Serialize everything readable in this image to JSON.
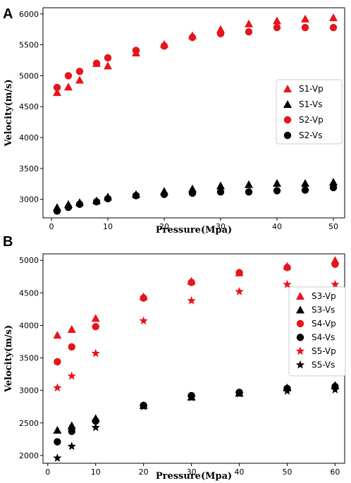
{
  "chart_data": [
    {
      "type": "scatter",
      "panel_label": "A",
      "xlabel": "Pressure(Mpa)",
      "ylabel": "Velocity(m/s)",
      "xlim": [
        -1.5,
        52
      ],
      "ylim": [
        2700,
        6100
      ],
      "xticks": [
        0,
        10,
        20,
        30,
        40,
        50
      ],
      "yticks": [
        3000,
        3500,
        4000,
        4500,
        5000,
        5500,
        6000
      ],
      "legend_position": "center-right",
      "grid": false,
      "series": [
        {
          "name": "S1-Vp",
          "marker": "triangle",
          "color": "#e8131b",
          "x": [
            1,
            3,
            5,
            8,
            10,
            15,
            20,
            25,
            30,
            35,
            40,
            45,
            50
          ],
          "y": [
            4730,
            4820,
            4930,
            5200,
            5160,
            5370,
            5510,
            5650,
            5750,
            5840,
            5890,
            5920,
            5940
          ]
        },
        {
          "name": "S1-Vs",
          "marker": "triangle",
          "color": "#000000",
          "x": [
            1,
            3,
            5,
            8,
            10,
            15,
            20,
            25,
            30,
            35,
            40,
            45,
            50
          ],
          "y": [
            2870,
            2920,
            2950,
            2980,
            3040,
            3080,
            3130,
            3170,
            3220,
            3240,
            3260,
            3260,
            3280
          ]
        },
        {
          "name": "S2-Vp",
          "marker": "circle",
          "color": "#e8131b",
          "x": [
            1,
            3,
            5,
            8,
            10,
            15,
            20,
            25,
            30,
            35,
            40,
            45,
            50
          ],
          "y": [
            4810,
            5000,
            5070,
            5200,
            5290,
            5410,
            5480,
            5620,
            5680,
            5710,
            5780,
            5780,
            5780
          ]
        },
        {
          "name": "S2-Vs",
          "marker": "circle",
          "color": "#000000",
          "x": [
            1,
            3,
            5,
            8,
            10,
            15,
            20,
            25,
            30,
            35,
            40,
            45,
            50
          ],
          "y": [
            2810,
            2870,
            2920,
            2960,
            3010,
            3060,
            3080,
            3100,
            3120,
            3120,
            3140,
            3150,
            3190
          ]
        }
      ]
    },
    {
      "type": "scatter",
      "panel_label": "B",
      "xlabel": "Pressure(Mpa)",
      "ylabel": "Velocity(m/s)",
      "xlim": [
        -1,
        62
      ],
      "ylim": [
        1880,
        5100
      ],
      "xticks": [
        0,
        10,
        20,
        30,
        40,
        50,
        60
      ],
      "yticks": [
        2000,
        2500,
        3000,
        3500,
        4000,
        4500,
        5000
      ],
      "legend_position": "center-right",
      "grid": false,
      "series": [
        {
          "name": "S3-Vp",
          "marker": "triangle",
          "color": "#e8131b",
          "x": [
            2,
            5,
            10,
            20,
            30,
            40,
            50,
            60
          ],
          "y": [
            3850,
            3940,
            4110,
            4440,
            4680,
            4810,
            4910,
            5000
          ]
        },
        {
          "name": "S3-Vs",
          "marker": "triangle",
          "color": "#000000",
          "x": [
            2,
            5,
            10,
            20,
            30,
            40,
            50,
            60
          ],
          "y": [
            2390,
            2460,
            2570,
            2770,
            2900,
            2960,
            3040,
            3080
          ]
        },
        {
          "name": "S4-Vp",
          "marker": "circle",
          "color": "#e8131b",
          "x": [
            2,
            5,
            10,
            20,
            30,
            40,
            50,
            60
          ],
          "y": [
            3440,
            3670,
            3980,
            4420,
            4660,
            4810,
            4890,
            4940
          ]
        },
        {
          "name": "S4-Vs",
          "marker": "circle",
          "color": "#000000",
          "x": [
            2,
            5,
            10,
            20,
            30,
            40,
            50,
            60
          ],
          "y": [
            2210,
            2370,
            2530,
            2770,
            2920,
            2970,
            3030,
            3060
          ]
        },
        {
          "name": "S5-Vp",
          "marker": "star",
          "color": "#e8131b",
          "x": [
            2,
            5,
            10,
            20,
            30,
            40,
            50,
            60
          ],
          "y": [
            3040,
            3220,
            3570,
            4070,
            4380,
            4520,
            4630,
            4630
          ]
        },
        {
          "name": "S5-Vs",
          "marker": "star",
          "color": "#000000",
          "x": [
            2,
            5,
            10,
            20,
            30,
            40,
            50,
            60
          ],
          "y": [
            1960,
            2140,
            2430,
            2750,
            2890,
            2950,
            2990,
            3010
          ]
        }
      ]
    }
  ]
}
